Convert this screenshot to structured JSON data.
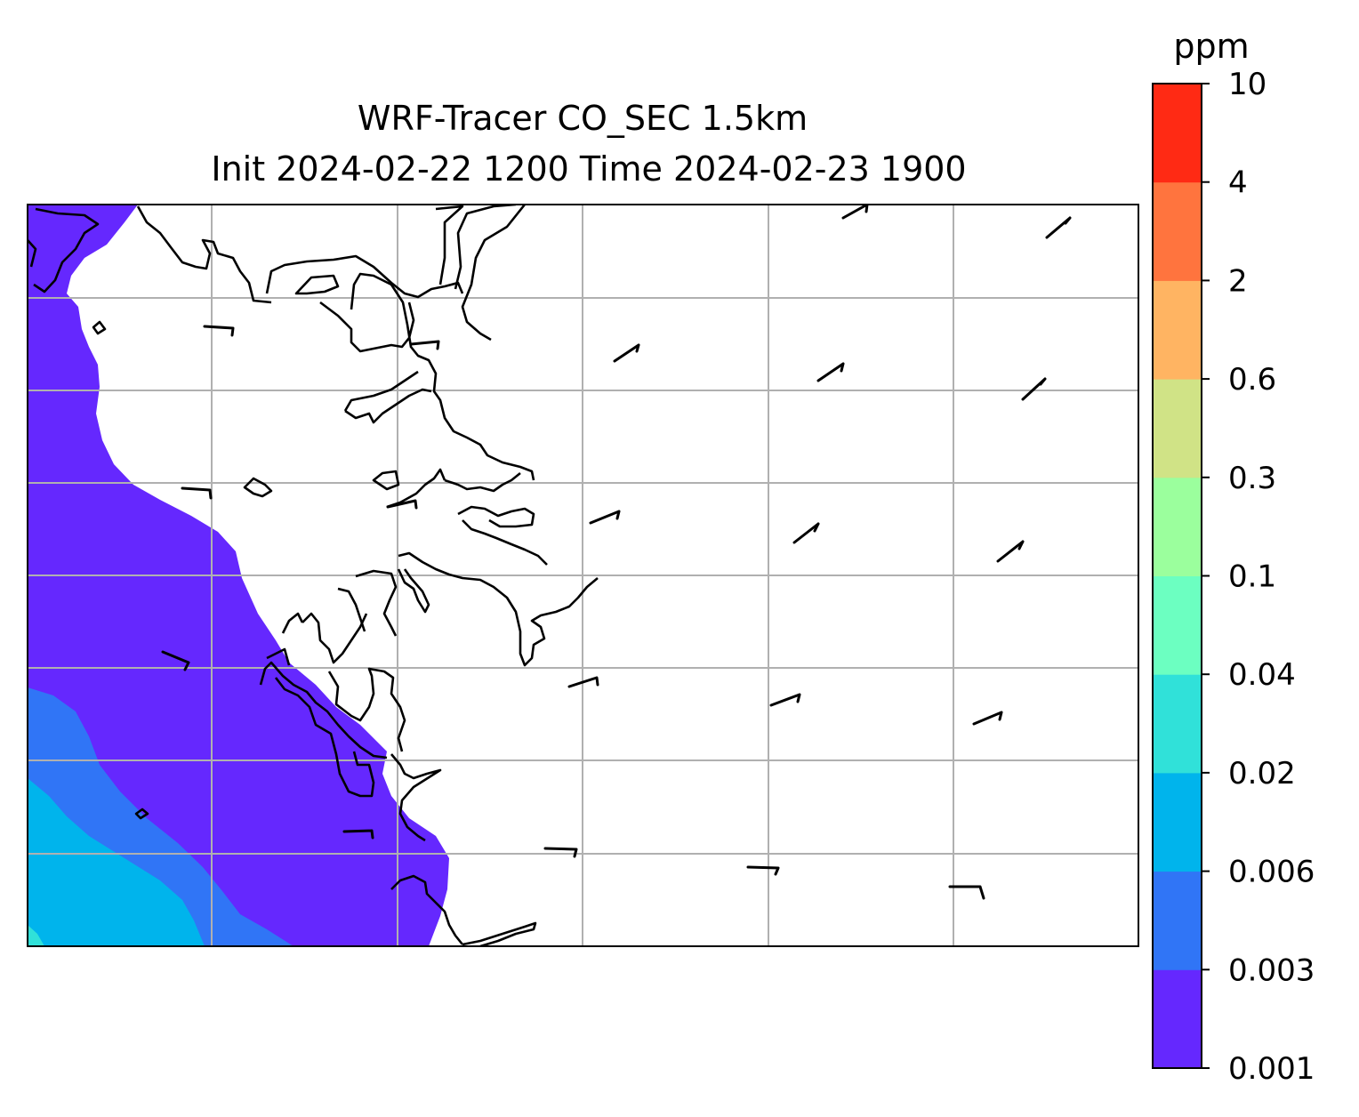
{
  "title": {
    "line1": "WRF-Tracer CO_SEC 1.5km",
    "line2": "Init 2024-02-22 1200 Time 2024-02-23 1900"
  },
  "colorbar": {
    "unit": "ppm",
    "levels": [
      {
        "label": "0.001",
        "color": "#6528fe"
      },
      {
        "label": "0.003",
        "color": "#3075f6"
      },
      {
        "label": "0.006",
        "color": "#00b4ec"
      },
      {
        "label": "0.02",
        "color": "#30e1d9"
      },
      {
        "label": "0.04",
        "color": "#6cffc1"
      },
      {
        "label": "0.1",
        "color": "#9bff9d"
      },
      {
        "label": "0.3",
        "color": "#d0e386"
      },
      {
        "label": "0.6",
        "color": "#ffb462"
      },
      {
        "label": "2",
        "color": "#ff743e"
      },
      {
        "label": "4",
        "color": "#ff2a14"
      },
      {
        "label": "10",
        "color": ""
      }
    ]
  },
  "map": {
    "gridlines": "on",
    "coastline_color": "#000000",
    "gridline_color": "#b0b0b0",
    "land_color": "#ffffff"
  }
}
